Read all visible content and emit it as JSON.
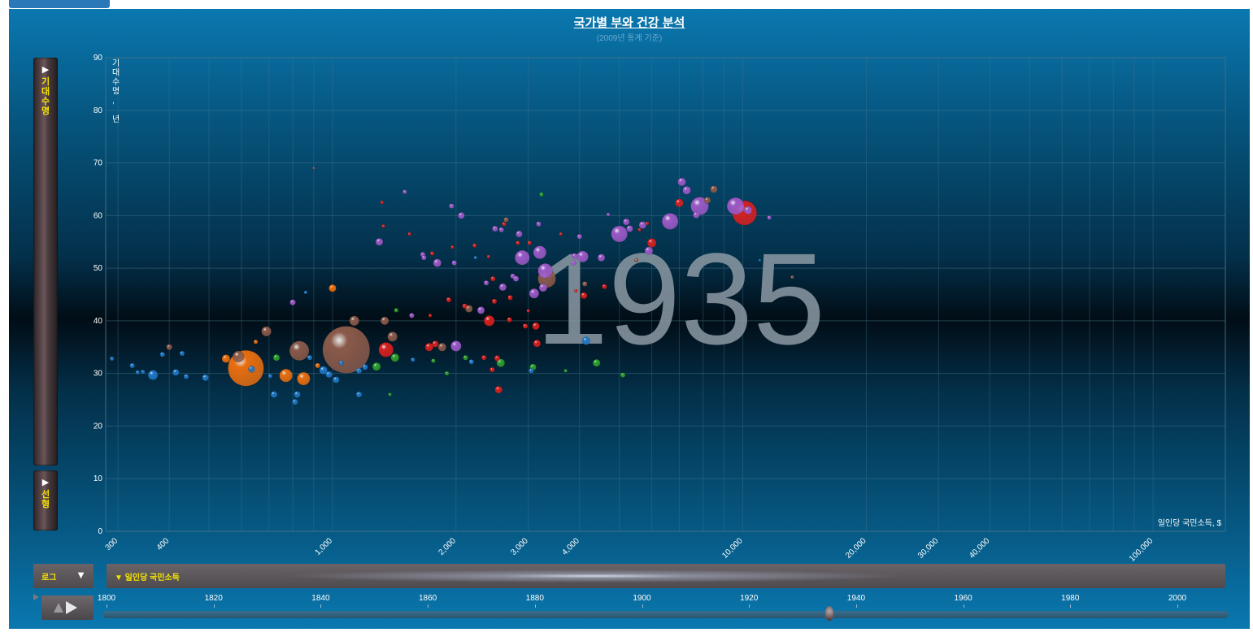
{
  "title": "국가별 부와 건강 분석",
  "subtitle": "(2009년 통계 기준)",
  "y_axis": {
    "button_arrow": "▶",
    "label": "기대수명",
    "unit_label": "기대수명, 년"
  },
  "y_scale": {
    "button_arrow": "▶",
    "label": "선형"
  },
  "x_scale": {
    "label": "로그",
    "arrow": "▼"
  },
  "x_axis": {
    "label": "▼ 일인당 국민소득",
    "unit_label": "일인당 국민소득, $"
  },
  "year_label": "1935",
  "year_slider": {
    "ticks": [
      "1800",
      "1820",
      "1840",
      "1860",
      "1880",
      "1900",
      "1920",
      "1940",
      "1960",
      "1980",
      "2000"
    ],
    "min_year": 1800,
    "max_year": 2010,
    "current_year": 1935
  },
  "colors": {
    "sub_saharan_africa": "#1f77c4",
    "south_asia": "#e86e10",
    "east_asia_pacific": "#8a5a4a",
    "middle_east_north_africa": "#2ca02c",
    "america": "#d62020",
    "europe_central_asia": "#9b59c6"
  },
  "chart_data": {
    "type": "scatter",
    "title": "국가별 부와 건강 분석",
    "subtitle": "(2009년 통계 기준)",
    "xlabel": "일인당 국민소득, $",
    "ylabel": "기대수명, 년",
    "x_scale": "log",
    "xlim": [
      280,
      150000
    ],
    "ylim": [
      0,
      90
    ],
    "x_ticks": [
      "300",
      "400",
      "1,000",
      "2,000",
      "3,000",
      "4,000",
      "10,000",
      "20,000",
      "30,000",
      "40,000",
      "100,000"
    ],
    "y_ticks": [
      "0",
      "10",
      "20",
      "30",
      "40",
      "50",
      "60",
      "70",
      "80",
      "90"
    ],
    "grid": true,
    "annotation": "1935",
    "points": [
      [
        290,
        32.8,
        "sub_saharan_africa",
        2.5
      ],
      [
        325,
        31.5,
        "sub_saharan_africa",
        3
      ],
      [
        335,
        30.2,
        "sub_saharan_africa",
        2.5
      ],
      [
        345,
        30.3,
        "sub_saharan_africa",
        2.5
      ],
      [
        365,
        29.7,
        "sub_saharan_africa",
        6
      ],
      [
        385,
        33.6,
        "sub_saharan_africa",
        3
      ],
      [
        400,
        35,
        "east_asia_pacific",
        3.5
      ],
      [
        415,
        30.2,
        "sub_saharan_africa",
        4
      ],
      [
        430,
        33.8,
        "sub_saharan_africa",
        3
      ],
      [
        440,
        29.4,
        "sub_saharan_africa",
        3
      ],
      [
        490,
        29.2,
        "sub_saharan_africa",
        4
      ],
      [
        550,
        32.8,
        "south_asia",
        5
      ],
      [
        590,
        33.2,
        "east_asia_pacific",
        7
      ],
      [
        615,
        31,
        "south_asia",
        22
      ],
      [
        635,
        30.8,
        "sub_saharan_africa",
        4
      ],
      [
        650,
        36,
        "south_asia",
        2.5
      ],
      [
        690,
        38,
        "east_asia_pacific",
        6
      ],
      [
        705,
        29.5,
        "sub_saharan_africa",
        2.5
      ],
      [
        720,
        26,
        "sub_saharan_africa",
        4
      ],
      [
        730,
        33,
        "middle_east_north_africa",
        4
      ],
      [
        770,
        29.6,
        "south_asia",
        8
      ],
      [
        800,
        43.5,
        "europe_central_asia",
        3.5
      ],
      [
        810,
        24.6,
        "sub_saharan_africa",
        3.5
      ],
      [
        820,
        26,
        "sub_saharan_africa",
        4
      ],
      [
        830,
        34.3,
        "east_asia_pacific",
        12
      ],
      [
        850,
        29,
        "south_asia",
        8
      ],
      [
        860,
        45.4,
        "sub_saharan_africa",
        2
      ],
      [
        880,
        33,
        "sub_saharan_africa",
        3
      ],
      [
        900,
        69,
        "east_asia_pacific",
        1.5
      ],
      [
        920,
        31.5,
        "south_asia",
        3
      ],
      [
        950,
        30.6,
        "sub_saharan_africa",
        5
      ],
      [
        980,
        29.8,
        "sub_saharan_africa",
        4
      ],
      [
        1000,
        46.2,
        "south_asia",
        4.5
      ],
      [
        1020,
        28.8,
        "sub_saharan_africa",
        4
      ],
      [
        1050,
        32,
        "sub_saharan_africa",
        3
      ],
      [
        1080,
        34.5,
        "east_asia_pacific",
        29
      ],
      [
        1130,
        40,
        "east_asia_pacific",
        6
      ],
      [
        1160,
        30.5,
        "sub_saharan_africa",
        3.5
      ],
      [
        1160,
        26,
        "sub_saharan_africa",
        3.5
      ],
      [
        1200,
        31.2,
        "sub_saharan_africa",
        3.5
      ],
      [
        1280,
        31.3,
        "middle_east_north_africa",
        5
      ],
      [
        1300,
        55,
        "europe_central_asia",
        4.5
      ],
      [
        1320,
        62.5,
        "america",
        2
      ],
      [
        1330,
        58,
        "america",
        2
      ],
      [
        1340,
        40,
        "east_asia_pacific",
        5
      ],
      [
        1350,
        34.5,
        "america",
        9
      ],
      [
        1380,
        26,
        "middle_east_north_africa",
        2
      ],
      [
        1400,
        37,
        "east_asia_pacific",
        6
      ],
      [
        1420,
        33,
        "middle_east_north_africa",
        5
      ],
      [
        1430,
        42,
        "middle_east_north_africa",
        2.5
      ],
      [
        1500,
        64.5,
        "europe_central_asia",
        2.5
      ],
      [
        1540,
        56.5,
        "america",
        2
      ],
      [
        1560,
        41,
        "europe_central_asia",
        3
      ],
      [
        1570,
        32.6,
        "sub_saharan_africa",
        2.5
      ],
      [
        1660,
        52.6,
        "europe_central_asia",
        3
      ],
      [
        1670,
        52,
        "europe_central_asia",
        3
      ],
      [
        1720,
        35,
        "america",
        5
      ],
      [
        1730,
        41,
        "america",
        2
      ],
      [
        1750,
        52.8,
        "america",
        2.5
      ],
      [
        1760,
        32.4,
        "middle_east_north_africa",
        2.5
      ],
      [
        1780,
        35.6,
        "america",
        4
      ],
      [
        1800,
        51,
        "europe_central_asia",
        5
      ],
      [
        1850,
        35,
        "east_asia_pacific",
        5
      ],
      [
        1900,
        30,
        "middle_east_north_africa",
        2.5
      ],
      [
        1920,
        44,
        "america",
        3
      ],
      [
        1950,
        61.8,
        "europe_central_asia",
        3
      ],
      [
        1960,
        54,
        "america",
        2
      ],
      [
        1980,
        51,
        "europe_central_asia",
        3
      ],
      [
        2000,
        35.2,
        "europe_central_asia",
        6.5
      ],
      [
        2060,
        60,
        "europe_central_asia",
        4
      ],
      [
        2100,
        42.8,
        "america",
        3
      ],
      [
        2110,
        33,
        "middle_east_north_africa",
        3
      ],
      [
        2150,
        42.3,
        "east_asia_pacific",
        4.5
      ],
      [
        2180,
        32.2,
        "sub_saharan_africa",
        3
      ],
      [
        2220,
        54.3,
        "america",
        2.5
      ],
      [
        2230,
        52,
        "sub_saharan_africa",
        2
      ],
      [
        2300,
        42,
        "europe_central_asia",
        4.5
      ],
      [
        2340,
        33,
        "america",
        3
      ],
      [
        2370,
        47.2,
        "europe_central_asia",
        3
      ],
      [
        2400,
        52.2,
        "america",
        2
      ],
      [
        2410,
        40,
        "america",
        6.5
      ],
      [
        2450,
        30.7,
        "america",
        3
      ],
      [
        2460,
        48,
        "america",
        3
      ],
      [
        2480,
        43.7,
        "america",
        3
      ],
      [
        2490,
        57.5,
        "europe_central_asia",
        3.5
      ],
      [
        2520,
        32.9,
        "america",
        3.5
      ],
      [
        2540,
        26.9,
        "america",
        4.5
      ],
      [
        2570,
        32,
        "middle_east_north_africa",
        5
      ],
      [
        2580,
        57.3,
        "europe_central_asia",
        3
      ],
      [
        2600,
        46.4,
        "europe_central_asia",
        4.5
      ],
      [
        2620,
        58.4,
        "america",
        2.5
      ],
      [
        2650,
        59.2,
        "east_asia_pacific",
        3
      ],
      [
        2700,
        40.2,
        "america",
        3
      ],
      [
        2710,
        44.4,
        "america",
        3
      ],
      [
        2750,
        48.5,
        "europe_central_asia",
        3
      ],
      [
        2800,
        48,
        "europe_central_asia",
        3.5
      ],
      [
        2830,
        54.8,
        "america",
        2.5
      ],
      [
        2850,
        56.5,
        "europe_central_asia",
        4
      ],
      [
        2900,
        52,
        "europe_central_asia",
        9
      ],
      [
        2950,
        39,
        "america",
        3
      ],
      [
        3000,
        41.9,
        "america",
        2
      ],
      [
        3020,
        54.8,
        "america",
        2.5
      ],
      [
        3050,
        30.5,
        "sub_saharan_africa",
        3
      ],
      [
        3080,
        31.2,
        "middle_east_north_africa",
        4
      ],
      [
        3100,
        45.2,
        "europe_central_asia",
        6
      ],
      [
        3130,
        39,
        "america",
        4.5
      ],
      [
        3150,
        35.7,
        "america",
        4.5
      ],
      [
        3180,
        58.4,
        "europe_central_asia",
        3
      ],
      [
        3200,
        53,
        "europe_central_asia",
        8
      ],
      [
        3230,
        64,
        "middle_east_north_africa",
        2.5
      ],
      [
        3260,
        46.3,
        "europe_central_asia",
        5
      ],
      [
        3300,
        49.5,
        "europe_central_asia",
        9
      ],
      [
        3330,
        48,
        "east_asia_pacific",
        11
      ],
      [
        3600,
        56.5,
        "america",
        2
      ],
      [
        3700,
        30.5,
        "middle_east_north_africa",
        2
      ],
      [
        3870,
        51,
        "europe_central_asia",
        3
      ],
      [
        3890,
        52.3,
        "europe_central_asia",
        3.5
      ],
      [
        3920,
        45.7,
        "america",
        2
      ],
      [
        4000,
        56,
        "europe_central_asia",
        3
      ],
      [
        4070,
        52.2,
        "europe_central_asia",
        7
      ],
      [
        4100,
        44.8,
        "america",
        4
      ],
      [
        4120,
        47,
        "east_asia_pacific",
        3
      ],
      [
        4150,
        36.2,
        "sub_saharan_africa",
        5
      ],
      [
        4400,
        32,
        "middle_east_north_africa",
        4.5
      ],
      [
        4520,
        52,
        "europe_central_asia",
        4.5
      ],
      [
        4600,
        46.5,
        "america",
        3
      ],
      [
        4700,
        60.2,
        "europe_central_asia",
        2
      ],
      [
        5000,
        56.5,
        "europe_central_asia",
        10
      ],
      [
        5100,
        29.7,
        "middle_east_north_africa",
        3
      ],
      [
        5200,
        58.8,
        "europe_central_asia",
        4
      ],
      [
        5300,
        57.5,
        "europe_central_asia",
        4
      ],
      [
        5500,
        51.5,
        "east_asia_pacific",
        2.5
      ],
      [
        5600,
        57.3,
        "america",
        2
      ],
      [
        5700,
        58.2,
        "europe_central_asia",
        4.5
      ],
      [
        5850,
        58.5,
        "america",
        2
      ],
      [
        5900,
        53.3,
        "europe_central_asia",
        5
      ],
      [
        6000,
        54.8,
        "america",
        5.5
      ],
      [
        6650,
        58.9,
        "europe_central_asia",
        10
      ],
      [
        7000,
        62.4,
        "america",
        5
      ],
      [
        7100,
        66.4,
        "europe_central_asia",
        5
      ],
      [
        7300,
        64.8,
        "europe_central_asia",
        5
      ],
      [
        7700,
        60.1,
        "europe_central_asia",
        4
      ],
      [
        7850,
        61.8,
        "europe_central_asia",
        11
      ],
      [
        8200,
        62.9,
        "east_asia_pacific",
        4
      ],
      [
        8500,
        65,
        "east_asia_pacific",
        4.5
      ],
      [
        9600,
        61.8,
        "europe_central_asia",
        10.5
      ],
      [
        10100,
        60.5,
        "america",
        15
      ],
      [
        10300,
        61,
        "europe_central_asia",
        5
      ],
      [
        11000,
        51.5,
        "sub_saharan_africa",
        1.5
      ],
      [
        11600,
        59.6,
        "europe_central_asia",
        2.5
      ],
      [
        13200,
        48.3,
        "east_asia_pacific",
        2
      ]
    ]
  }
}
